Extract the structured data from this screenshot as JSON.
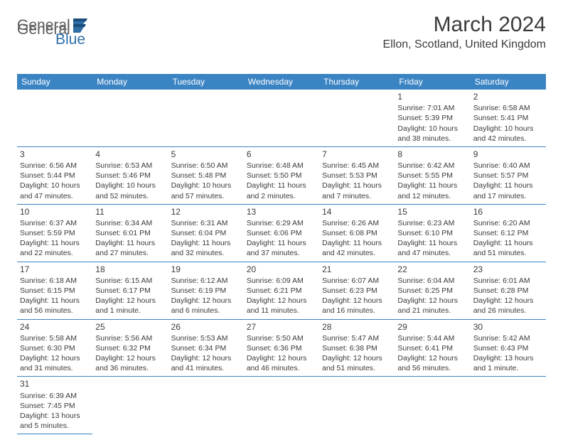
{
  "logo": {
    "part1": "General",
    "part2": "Blue"
  },
  "title": "March 2024",
  "location": "Ellon, Scotland, United Kingdom",
  "colors": {
    "header_bg": "#3b84c4",
    "header_text": "#ffffff",
    "text": "#3b3b3b",
    "logo_gray": "#5b5b5b",
    "logo_blue": "#2f6fa8",
    "border": "#3b84c4",
    "background": "#ffffff"
  },
  "weekdays": [
    "Sunday",
    "Monday",
    "Tuesday",
    "Wednesday",
    "Thursday",
    "Friday",
    "Saturday"
  ],
  "days": [
    {
      "n": "1",
      "sr": "Sunrise: 7:01 AM",
      "ss": "Sunset: 5:39 PM",
      "dl": "Daylight: 10 hours and 38 minutes."
    },
    {
      "n": "2",
      "sr": "Sunrise: 6:58 AM",
      "ss": "Sunset: 5:41 PM",
      "dl": "Daylight: 10 hours and 42 minutes."
    },
    {
      "n": "3",
      "sr": "Sunrise: 6:56 AM",
      "ss": "Sunset: 5:44 PM",
      "dl": "Daylight: 10 hours and 47 minutes."
    },
    {
      "n": "4",
      "sr": "Sunrise: 6:53 AM",
      "ss": "Sunset: 5:46 PM",
      "dl": "Daylight: 10 hours and 52 minutes."
    },
    {
      "n": "5",
      "sr": "Sunrise: 6:50 AM",
      "ss": "Sunset: 5:48 PM",
      "dl": "Daylight: 10 hours and 57 minutes."
    },
    {
      "n": "6",
      "sr": "Sunrise: 6:48 AM",
      "ss": "Sunset: 5:50 PM",
      "dl": "Daylight: 11 hours and 2 minutes."
    },
    {
      "n": "7",
      "sr": "Sunrise: 6:45 AM",
      "ss": "Sunset: 5:53 PM",
      "dl": "Daylight: 11 hours and 7 minutes."
    },
    {
      "n": "8",
      "sr": "Sunrise: 6:42 AM",
      "ss": "Sunset: 5:55 PM",
      "dl": "Daylight: 11 hours and 12 minutes."
    },
    {
      "n": "9",
      "sr": "Sunrise: 6:40 AM",
      "ss": "Sunset: 5:57 PM",
      "dl": "Daylight: 11 hours and 17 minutes."
    },
    {
      "n": "10",
      "sr": "Sunrise: 6:37 AM",
      "ss": "Sunset: 5:59 PM",
      "dl": "Daylight: 11 hours and 22 minutes."
    },
    {
      "n": "11",
      "sr": "Sunrise: 6:34 AM",
      "ss": "Sunset: 6:01 PM",
      "dl": "Daylight: 11 hours and 27 minutes."
    },
    {
      "n": "12",
      "sr": "Sunrise: 6:31 AM",
      "ss": "Sunset: 6:04 PM",
      "dl": "Daylight: 11 hours and 32 minutes."
    },
    {
      "n": "13",
      "sr": "Sunrise: 6:29 AM",
      "ss": "Sunset: 6:06 PM",
      "dl": "Daylight: 11 hours and 37 minutes."
    },
    {
      "n": "14",
      "sr": "Sunrise: 6:26 AM",
      "ss": "Sunset: 6:08 PM",
      "dl": "Daylight: 11 hours and 42 minutes."
    },
    {
      "n": "15",
      "sr": "Sunrise: 6:23 AM",
      "ss": "Sunset: 6:10 PM",
      "dl": "Daylight: 11 hours and 47 minutes."
    },
    {
      "n": "16",
      "sr": "Sunrise: 6:20 AM",
      "ss": "Sunset: 6:12 PM",
      "dl": "Daylight: 11 hours and 51 minutes."
    },
    {
      "n": "17",
      "sr": "Sunrise: 6:18 AM",
      "ss": "Sunset: 6:15 PM",
      "dl": "Daylight: 11 hours and 56 minutes."
    },
    {
      "n": "18",
      "sr": "Sunrise: 6:15 AM",
      "ss": "Sunset: 6:17 PM",
      "dl": "Daylight: 12 hours and 1 minute."
    },
    {
      "n": "19",
      "sr": "Sunrise: 6:12 AM",
      "ss": "Sunset: 6:19 PM",
      "dl": "Daylight: 12 hours and 6 minutes."
    },
    {
      "n": "20",
      "sr": "Sunrise: 6:09 AM",
      "ss": "Sunset: 6:21 PM",
      "dl": "Daylight: 12 hours and 11 minutes."
    },
    {
      "n": "21",
      "sr": "Sunrise: 6:07 AM",
      "ss": "Sunset: 6:23 PM",
      "dl": "Daylight: 12 hours and 16 minutes."
    },
    {
      "n": "22",
      "sr": "Sunrise: 6:04 AM",
      "ss": "Sunset: 6:25 PM",
      "dl": "Daylight: 12 hours and 21 minutes."
    },
    {
      "n": "23",
      "sr": "Sunrise: 6:01 AM",
      "ss": "Sunset: 6:28 PM",
      "dl": "Daylight: 12 hours and 26 minutes."
    },
    {
      "n": "24",
      "sr": "Sunrise: 5:58 AM",
      "ss": "Sunset: 6:30 PM",
      "dl": "Daylight: 12 hours and 31 minutes."
    },
    {
      "n": "25",
      "sr": "Sunrise: 5:56 AM",
      "ss": "Sunset: 6:32 PM",
      "dl": "Daylight: 12 hours and 36 minutes."
    },
    {
      "n": "26",
      "sr": "Sunrise: 5:53 AM",
      "ss": "Sunset: 6:34 PM",
      "dl": "Daylight: 12 hours and 41 minutes."
    },
    {
      "n": "27",
      "sr": "Sunrise: 5:50 AM",
      "ss": "Sunset: 6:36 PM",
      "dl": "Daylight: 12 hours and 46 minutes."
    },
    {
      "n": "28",
      "sr": "Sunrise: 5:47 AM",
      "ss": "Sunset: 6:38 PM",
      "dl": "Daylight: 12 hours and 51 minutes."
    },
    {
      "n": "29",
      "sr": "Sunrise: 5:44 AM",
      "ss": "Sunset: 6:41 PM",
      "dl": "Daylight: 12 hours and 56 minutes."
    },
    {
      "n": "30",
      "sr": "Sunrise: 5:42 AM",
      "ss": "Sunset: 6:43 PM",
      "dl": "Daylight: 13 hours and 1 minute."
    },
    {
      "n": "31",
      "sr": "Sunrise: 6:39 AM",
      "ss": "Sunset: 7:45 PM",
      "dl": "Daylight: 13 hours and 5 minutes."
    }
  ]
}
